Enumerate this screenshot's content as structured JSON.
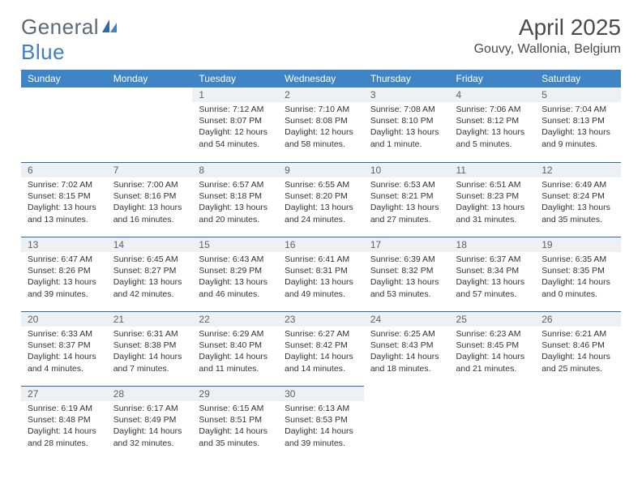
{
  "brand": {
    "general": "General",
    "blue": "Blue"
  },
  "header": {
    "title": "April 2025",
    "location": "Gouvy, Wallonia, Belgium"
  },
  "colors": {
    "header_bg": "#3f85c6",
    "header_text": "#ffffff",
    "daybar_bg": "#eef1f3",
    "daynum_text": "#5a6268",
    "row_border": "#2f6ba3",
    "body_text": "#333333",
    "brand_grey": "#5c6a78",
    "brand_blue": "#3f7fbf"
  },
  "weekdays": [
    "Sunday",
    "Monday",
    "Tuesday",
    "Wednesday",
    "Thursday",
    "Friday",
    "Saturday"
  ],
  "weeks": [
    [
      {
        "empty": true
      },
      {
        "empty": true
      },
      {
        "num": "1",
        "sunrise": "Sunrise: 7:12 AM",
        "sunset": "Sunset: 8:07 PM",
        "daylight": "Daylight: 12 hours and 54 minutes."
      },
      {
        "num": "2",
        "sunrise": "Sunrise: 7:10 AM",
        "sunset": "Sunset: 8:08 PM",
        "daylight": "Daylight: 12 hours and 58 minutes."
      },
      {
        "num": "3",
        "sunrise": "Sunrise: 7:08 AM",
        "sunset": "Sunset: 8:10 PM",
        "daylight": "Daylight: 13 hours and 1 minute."
      },
      {
        "num": "4",
        "sunrise": "Sunrise: 7:06 AM",
        "sunset": "Sunset: 8:12 PM",
        "daylight": "Daylight: 13 hours and 5 minutes."
      },
      {
        "num": "5",
        "sunrise": "Sunrise: 7:04 AM",
        "sunset": "Sunset: 8:13 PM",
        "daylight": "Daylight: 13 hours and 9 minutes."
      }
    ],
    [
      {
        "num": "6",
        "sunrise": "Sunrise: 7:02 AM",
        "sunset": "Sunset: 8:15 PM",
        "daylight": "Daylight: 13 hours and 13 minutes."
      },
      {
        "num": "7",
        "sunrise": "Sunrise: 7:00 AM",
        "sunset": "Sunset: 8:16 PM",
        "daylight": "Daylight: 13 hours and 16 minutes."
      },
      {
        "num": "8",
        "sunrise": "Sunrise: 6:57 AM",
        "sunset": "Sunset: 8:18 PM",
        "daylight": "Daylight: 13 hours and 20 minutes."
      },
      {
        "num": "9",
        "sunrise": "Sunrise: 6:55 AM",
        "sunset": "Sunset: 8:20 PM",
        "daylight": "Daylight: 13 hours and 24 minutes."
      },
      {
        "num": "10",
        "sunrise": "Sunrise: 6:53 AM",
        "sunset": "Sunset: 8:21 PM",
        "daylight": "Daylight: 13 hours and 27 minutes."
      },
      {
        "num": "11",
        "sunrise": "Sunrise: 6:51 AM",
        "sunset": "Sunset: 8:23 PM",
        "daylight": "Daylight: 13 hours and 31 minutes."
      },
      {
        "num": "12",
        "sunrise": "Sunrise: 6:49 AM",
        "sunset": "Sunset: 8:24 PM",
        "daylight": "Daylight: 13 hours and 35 minutes."
      }
    ],
    [
      {
        "num": "13",
        "sunrise": "Sunrise: 6:47 AM",
        "sunset": "Sunset: 8:26 PM",
        "daylight": "Daylight: 13 hours and 39 minutes."
      },
      {
        "num": "14",
        "sunrise": "Sunrise: 6:45 AM",
        "sunset": "Sunset: 8:27 PM",
        "daylight": "Daylight: 13 hours and 42 minutes."
      },
      {
        "num": "15",
        "sunrise": "Sunrise: 6:43 AM",
        "sunset": "Sunset: 8:29 PM",
        "daylight": "Daylight: 13 hours and 46 minutes."
      },
      {
        "num": "16",
        "sunrise": "Sunrise: 6:41 AM",
        "sunset": "Sunset: 8:31 PM",
        "daylight": "Daylight: 13 hours and 49 minutes."
      },
      {
        "num": "17",
        "sunrise": "Sunrise: 6:39 AM",
        "sunset": "Sunset: 8:32 PM",
        "daylight": "Daylight: 13 hours and 53 minutes."
      },
      {
        "num": "18",
        "sunrise": "Sunrise: 6:37 AM",
        "sunset": "Sunset: 8:34 PM",
        "daylight": "Daylight: 13 hours and 57 minutes."
      },
      {
        "num": "19",
        "sunrise": "Sunrise: 6:35 AM",
        "sunset": "Sunset: 8:35 PM",
        "daylight": "Daylight: 14 hours and 0 minutes."
      }
    ],
    [
      {
        "num": "20",
        "sunrise": "Sunrise: 6:33 AM",
        "sunset": "Sunset: 8:37 PM",
        "daylight": "Daylight: 14 hours and 4 minutes."
      },
      {
        "num": "21",
        "sunrise": "Sunrise: 6:31 AM",
        "sunset": "Sunset: 8:38 PM",
        "daylight": "Daylight: 14 hours and 7 minutes."
      },
      {
        "num": "22",
        "sunrise": "Sunrise: 6:29 AM",
        "sunset": "Sunset: 8:40 PM",
        "daylight": "Daylight: 14 hours and 11 minutes."
      },
      {
        "num": "23",
        "sunrise": "Sunrise: 6:27 AM",
        "sunset": "Sunset: 8:42 PM",
        "daylight": "Daylight: 14 hours and 14 minutes."
      },
      {
        "num": "24",
        "sunrise": "Sunrise: 6:25 AM",
        "sunset": "Sunset: 8:43 PM",
        "daylight": "Daylight: 14 hours and 18 minutes."
      },
      {
        "num": "25",
        "sunrise": "Sunrise: 6:23 AM",
        "sunset": "Sunset: 8:45 PM",
        "daylight": "Daylight: 14 hours and 21 minutes."
      },
      {
        "num": "26",
        "sunrise": "Sunrise: 6:21 AM",
        "sunset": "Sunset: 8:46 PM",
        "daylight": "Daylight: 14 hours and 25 minutes."
      }
    ],
    [
      {
        "num": "27",
        "sunrise": "Sunrise: 6:19 AM",
        "sunset": "Sunset: 8:48 PM",
        "daylight": "Daylight: 14 hours and 28 minutes."
      },
      {
        "num": "28",
        "sunrise": "Sunrise: 6:17 AM",
        "sunset": "Sunset: 8:49 PM",
        "daylight": "Daylight: 14 hours and 32 minutes."
      },
      {
        "num": "29",
        "sunrise": "Sunrise: 6:15 AM",
        "sunset": "Sunset: 8:51 PM",
        "daylight": "Daylight: 14 hours and 35 minutes."
      },
      {
        "num": "30",
        "sunrise": "Sunrise: 6:13 AM",
        "sunset": "Sunset: 8:53 PM",
        "daylight": "Daylight: 14 hours and 39 minutes."
      },
      {
        "empty": true
      },
      {
        "empty": true
      },
      {
        "empty": true
      }
    ]
  ]
}
